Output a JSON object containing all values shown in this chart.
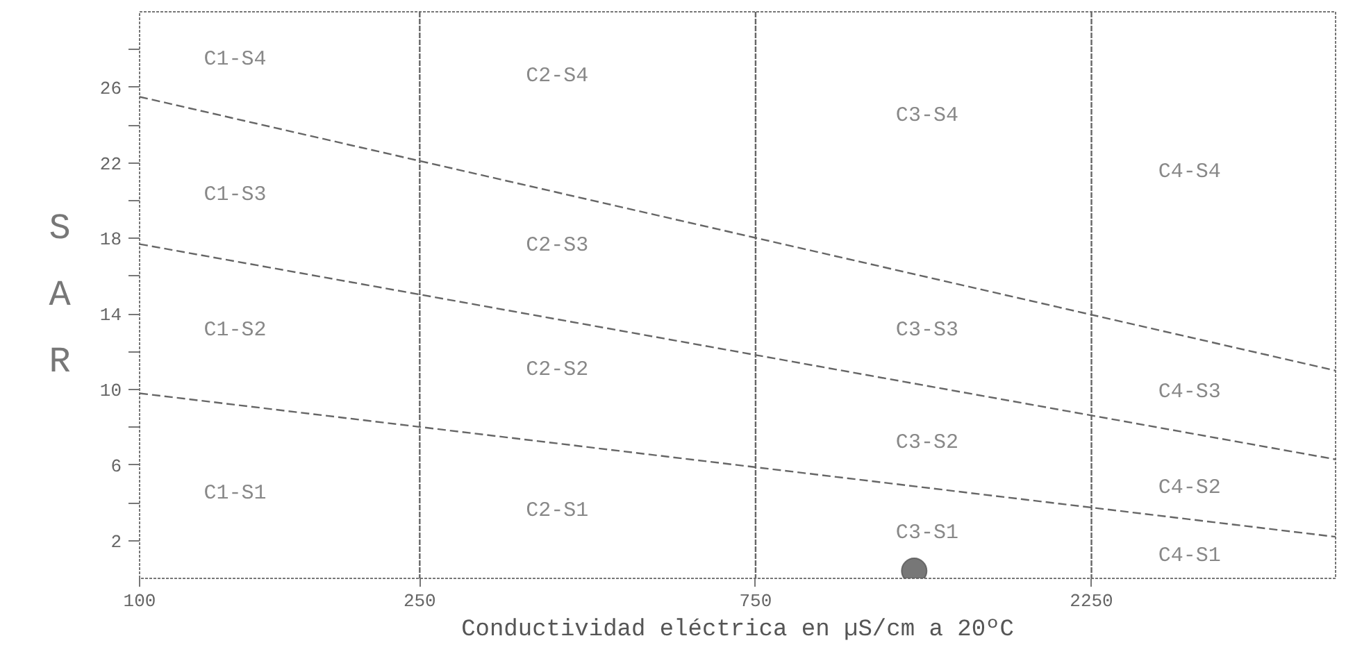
{
  "chart_data": {
    "type": "line",
    "xlabel": "Conductividad eléctrica en µS/cm a 20ºC",
    "ylabel": "SAR",
    "log": "x",
    "xlim": [
      100,
      5000
    ],
    "xticks": [
      100,
      250,
      750,
      2250
    ],
    "ylim": [
      0,
      30
    ],
    "yticks": [
      2,
      {
        "value": 4,
        "label": null
      },
      6,
      {
        "value": 8,
        "label": null
      },
      10,
      {
        "value": 12,
        "label": null
      },
      14,
      {
        "value": 16,
        "label": null
      },
      18,
      {
        "value": 20,
        "label": null
      },
      22,
      {
        "value": 24,
        "label": null
      },
      26,
      {
        "value": 28,
        "label": null
      }
    ],
    "grid": false,
    "line_style": "dashed",
    "series": [
      {
        "color": "#666666",
        "x": [
          100,
          5000
        ],
        "values": [
          9.8,
          2.2
        ]
      },
      {
        "color": "#666666",
        "x": [
          100,
          5000
        ],
        "values": [
          17.7,
          6.3
        ]
      },
      {
        "color": "#666666",
        "x": [
          100,
          5000
        ],
        "values": [
          25.5,
          11
        ]
      },
      {
        "type": "scatter",
        "marker": "circle",
        "color": "#555555",
        "x": [
          1260
        ],
        "values": [
          0.4
        ]
      }
    ],
    "ref_lines": [
      {
        "axis": "x",
        "value": 250,
        "color": "#666666"
      },
      {
        "axis": "x",
        "value": 750,
        "color": "#666666"
      },
      {
        "axis": "x",
        "value": 2250,
        "color": "#666666"
      }
    ],
    "annotations": [
      "C1-S4",
      "C1-S3",
      "C1-S2",
      "C1-S1",
      "C2-S4",
      "C2-S3",
      "C2-S2",
      "C2-S1",
      "C3-S4",
      "C3-S3",
      "C3-S2",
      "C3-S1",
      "C4-S4",
      "C4-S3",
      "C4-S2",
      "C4-S1"
    ]
  }
}
